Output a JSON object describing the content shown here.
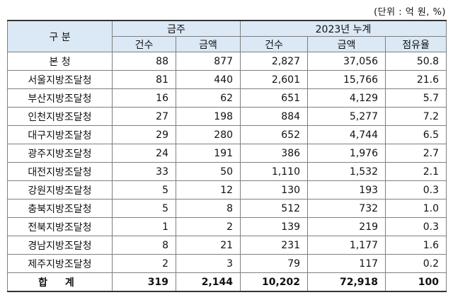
{
  "unit_note": "(단위 : 억 원, %)",
  "header": {
    "category": "구 분",
    "group_week": "금주",
    "group_cumulative": "2023년 누계",
    "count": "건수",
    "amount": "금액",
    "share": "점유율"
  },
  "rows": [
    {
      "name": "본 청",
      "wk_count": "88",
      "wk_amount": "877",
      "cum_count": "2,827",
      "cum_amount": "37,056",
      "share": "50.8"
    },
    {
      "name": "서울지방조달청",
      "wk_count": "81",
      "wk_amount": "440",
      "cum_count": "2,601",
      "cum_amount": "15,766",
      "share": "21.6"
    },
    {
      "name": "부산지방조달청",
      "wk_count": "16",
      "wk_amount": "62",
      "cum_count": "651",
      "cum_amount": "4,129",
      "share": "5.7"
    },
    {
      "name": "인천지방조달청",
      "wk_count": "27",
      "wk_amount": "198",
      "cum_count": "884",
      "cum_amount": "5,277",
      "share": "7.2"
    },
    {
      "name": "대구지방조달청",
      "wk_count": "29",
      "wk_amount": "280",
      "cum_count": "652",
      "cum_amount": "4,744",
      "share": "6.5"
    },
    {
      "name": "광주지방조달청",
      "wk_count": "24",
      "wk_amount": "191",
      "cum_count": "386",
      "cum_amount": "1,976",
      "share": "2.7"
    },
    {
      "name": "대전지방조달청",
      "wk_count": "33",
      "wk_amount": "50",
      "cum_count": "1,110",
      "cum_amount": "1,532",
      "share": "2.1"
    },
    {
      "name": "강원지방조달청",
      "wk_count": "5",
      "wk_amount": "12",
      "cum_count": "130",
      "cum_amount": "193",
      "share": "0.3"
    },
    {
      "name": "충북지방조달청",
      "wk_count": "5",
      "wk_amount": "8",
      "cum_count": "512",
      "cum_amount": "732",
      "share": "1.0"
    },
    {
      "name": "전북지방조달청",
      "wk_count": "1",
      "wk_amount": "2",
      "cum_count": "139",
      "cum_amount": "219",
      "share": "0.3"
    },
    {
      "name": "경남지방조달청",
      "wk_count": "8",
      "wk_amount": "21",
      "cum_count": "231",
      "cum_amount": "1,177",
      "share": "1.6"
    },
    {
      "name": "제주지방조달청",
      "wk_count": "2",
      "wk_amount": "3",
      "cum_count": "79",
      "cum_amount": "117",
      "share": "0.2"
    }
  ],
  "total": {
    "name": "합 계",
    "wk_count": "319",
    "wk_amount": "2,144",
    "cum_count": "10,202",
    "cum_amount": "72,918",
    "share": "100"
  },
  "colors": {
    "header_bg": "#dbe8f5",
    "border": "#7f7f7f"
  }
}
